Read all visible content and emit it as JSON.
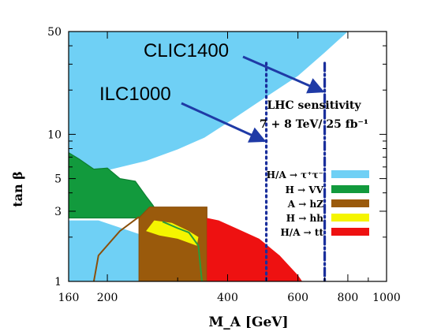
{
  "chart_data": {
    "type": "area",
    "xlabel": "M_A [GeV]",
    "ylabel": "tan β",
    "x_scale": "log",
    "y_scale": "log",
    "xlim": [
      160,
      1000
    ],
    "ylim": [
      1,
      50
    ],
    "x_ticks": [
      160,
      200,
      400,
      600,
      800,
      1000
    ],
    "y_ticks": [
      1,
      3,
      5,
      10,
      50
    ],
    "annotation_lines": [
      "LHC sensitivity",
      "7 + 8 TeV/ 25 fb⁻¹"
    ],
    "legend": [
      {
        "label": "H/A → τ⁺τ⁻",
        "color": "#6fd0f5"
      },
      {
        "label": "H → VV",
        "color": "#129a3d"
      },
      {
        "label": "A → hZ",
        "color": "#9a5a0c"
      },
      {
        "label": "H → hh",
        "color": "#f5f500"
      },
      {
        "label": "H/A → tt",
        "color": "#ee1111"
      }
    ],
    "vertical_lines": [
      {
        "name": "ILC1000",
        "x": 500,
        "style": "dotted",
        "color": "#1a2f9c"
      },
      {
        "name": "CLIC1400",
        "x": 700,
        "style": "dash-dot",
        "color": "#1a2f9c"
      }
    ],
    "regions": [
      {
        "process": "H/A → τ⁺τ⁻",
        "color": "#6fd0f5",
        "upper": [
          [
            160,
            50
          ],
          [
            1000,
            50
          ]
        ],
        "lower": [
          [
            160,
            4.8
          ],
          [
            180,
            5.3
          ],
          [
            200,
            5.7
          ],
          [
            250,
            6.6
          ],
          [
            300,
            7.9
          ],
          [
            350,
            9.5
          ],
          [
            400,
            12
          ],
          [
            500,
            18
          ],
          [
            600,
            25
          ],
          [
            700,
            36
          ],
          [
            800,
            50
          ]
        ]
      },
      {
        "process": "H/A → τ⁺τ⁻ (low)",
        "color": "#6fd0f5",
        "boundary": [
          [
            160,
            1
          ],
          [
            160,
            2.6
          ],
          [
            190,
            2.6
          ],
          [
            240,
            2.1
          ],
          [
            240,
            1
          ]
        ]
      },
      {
        "process": "H → VV",
        "color": "#129a3d",
        "boundary": [
          [
            160,
            2.7
          ],
          [
            160,
            7.5
          ],
          [
            170,
            6.8
          ],
          [
            185,
            5.8
          ],
          [
            200,
            5.9
          ],
          [
            215,
            5.0
          ],
          [
            235,
            4.8
          ],
          [
            250,
            3.8
          ],
          [
            260,
            3.3
          ],
          [
            275,
            2.6
          ],
          [
            300,
            2.35
          ],
          [
            320,
            2.2
          ],
          [
            338,
            1.9
          ],
          [
            350,
            1.6
          ],
          [
            355,
            1.0
          ],
          [
            340,
            1.0
          ],
          [
            330,
            1.9
          ],
          [
            300,
            2.2
          ],
          [
            270,
            2.8
          ],
          [
            255,
            3.0
          ],
          [
            240,
            2.7
          ]
        ]
      },
      {
        "process": "A → hZ",
        "color": "#9a5a0c",
        "boundary": [
          [
            240,
            1
          ],
          [
            240,
            2.7
          ],
          [
            255,
            3.2
          ],
          [
            355,
            3.2
          ],
          [
            355,
            1
          ]
        ]
      },
      {
        "process": "H → hh",
        "color": "#f5f500",
        "boundary": [
          [
            250,
            2.2
          ],
          [
            262,
            2.6
          ],
          [
            290,
            2.5
          ],
          [
            320,
            2.2
          ],
          [
            338,
            2.0
          ],
          [
            335,
            1.75
          ],
          [
            300,
            1.95
          ],
          [
            270,
            2.05
          ]
        ]
      },
      {
        "process": "H/A → tt",
        "color": "#ee1111",
        "boundary": [
          [
            355,
            1
          ],
          [
            355,
            2.7
          ],
          [
            380,
            2.6
          ],
          [
            420,
            2.3
          ],
          [
            480,
            1.95
          ],
          [
            540,
            1.5
          ],
          [
            600,
            1.1
          ],
          [
            615,
            1
          ]
        ]
      }
    ],
    "grid": false,
    "legend_position": "right-middle"
  },
  "callouts": [
    {
      "label": "CLIC1400",
      "target_x": 700,
      "target_y": 19.5
    },
    {
      "label": "ILC1000",
      "target_x": 500,
      "target_y": 9.0
    }
  ]
}
